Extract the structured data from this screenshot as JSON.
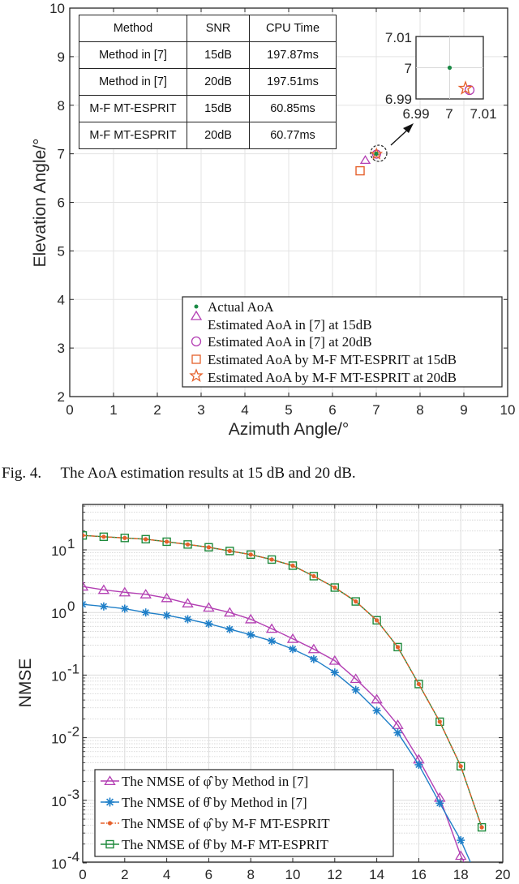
{
  "figure4": {
    "table": {
      "headers": [
        "Method",
        "SNR",
        "CPU Time"
      ],
      "rows": [
        [
          "Method in [7]",
          "15dB",
          "197.87ms"
        ],
        [
          "Method in [7]",
          "20dB",
          "197.51ms"
        ],
        [
          "M-F MT-ESPRIT",
          "15dB",
          "60.85ms"
        ],
        [
          "M-F MT-ESPRIT",
          "20dB",
          "60.77ms"
        ]
      ]
    },
    "caption": "Fig. 4.     The AoA estimation results at 15 dB and 20 dB.",
    "inset": {
      "xticks": [
        "6.99",
        "7",
        "7.01"
      ],
      "yticks": [
        "7.01",
        "7",
        "6.99"
      ]
    }
  },
  "chart_data": [
    {
      "type": "scatter",
      "title": "",
      "xlabel": "Azimuth Angle/°",
      "ylabel": "Elevation Angle/°",
      "xlim": [
        0,
        10
      ],
      "ylim": [
        2,
        10
      ],
      "xticks": [
        "0",
        "1",
        "2",
        "3",
        "4",
        "5",
        "6",
        "7",
        "8",
        "9",
        "10"
      ],
      "yticks": [
        "2",
        "3",
        "4",
        "5",
        "6",
        "7",
        "8",
        "9",
        "10"
      ],
      "grid": true,
      "legend_position": "lower right",
      "series": [
        {
          "name": "Actual AoA",
          "marker": "dot",
          "color": "#1a8a45",
          "x": [
            7.0
          ],
          "y": [
            7.0
          ]
        },
        {
          "name": "Estimated AoA in [7] at 15dB",
          "marker": "triangle",
          "color": "#b33fb3",
          "x": [
            6.75
          ],
          "y": [
            6.87
          ]
        },
        {
          "name": "Estimated AoA in [7] at 20dB",
          "marker": "circle",
          "color": "#b33fb3",
          "x": [
            7.006
          ],
          "y": [
            6.993
          ]
        },
        {
          "name": "Estimated AoA by M-F MT-ESPRIT at 15dB",
          "marker": "square",
          "color": "#e5602b",
          "x": [
            6.63
          ],
          "y": [
            6.65
          ]
        },
        {
          "name": "Estimated AoA by M-F MT-ESPRIT at 20dB",
          "marker": "star",
          "color": "#e5602b",
          "x": [
            7.005
          ],
          "y": [
            6.994
          ]
        }
      ],
      "inset": {
        "xlim": [
          6.99,
          7.01
        ],
        "ylim": [
          6.99,
          7.01
        ]
      }
    },
    {
      "type": "line",
      "title": "",
      "xlabel": "",
      "ylabel": "NMSE",
      "yscale": "log",
      "xlim": [
        0,
        20
      ],
      "ylim": [
        0.0001,
        50
      ],
      "xticks": [
        "0",
        "2",
        "4",
        "6",
        "8",
        "10",
        "12",
        "14",
        "16",
        "18",
        "20"
      ],
      "yticks": [
        "10^-4",
        "10^-3",
        "10^-2",
        "10^-1",
        "10^0",
        "10^1"
      ],
      "grid": true,
      "legend_position": "lower left",
      "x": [
        0,
        1,
        2,
        3,
        4,
        5,
        6,
        7,
        8,
        9,
        10,
        11,
        12,
        13,
        14,
        15,
        16,
        17,
        18,
        19
      ],
      "series": [
        {
          "name": "The NMSE of φ̂ by Method in [7]",
          "marker": "triangle",
          "color": "#b33fb3",
          "values": [
            2.6,
            2.3,
            2.1,
            1.95,
            1.7,
            1.4,
            1.2,
            1.0,
            0.78,
            0.55,
            0.38,
            0.26,
            0.17,
            0.087,
            0.041,
            0.016,
            0.0045,
            0.0011,
            0.00013,
            3e-05
          ]
        },
        {
          "name": "The NMSE of θ̂ by Method in [7]",
          "marker": "asterisk",
          "color": "#1f7fc8",
          "values": [
            1.35,
            1.25,
            1.15,
            1.0,
            0.9,
            0.78,
            0.66,
            0.54,
            0.44,
            0.35,
            0.26,
            0.18,
            0.11,
            0.058,
            0.027,
            0.012,
            0.0037,
            0.0009,
            0.00023,
            4e-05
          ]
        },
        {
          "name": "The NMSE of φ̂ by M-F MT-ESPRIT",
          "marker": "dot",
          "linestyle": "dash-dot",
          "color": "#e5602b",
          "values": [
            17,
            16.2,
            15.5,
            14.8,
            13.5,
            12.2,
            11.0,
            9.6,
            8.4,
            7.0,
            5.6,
            3.8,
            2.5,
            1.5,
            0.75,
            0.28,
            0.072,
            0.018,
            0.0035,
            0.00037
          ]
        },
        {
          "name": "The NMSE of θ̂ by M-F MT-ESPRIT",
          "marker": "square",
          "color": "#1e8a3c",
          "values": [
            17,
            16.2,
            15.5,
            14.8,
            13.5,
            12.2,
            11.0,
            9.6,
            8.4,
            7.0,
            5.6,
            3.8,
            2.5,
            1.5,
            0.75,
            0.28,
            0.072,
            0.018,
            0.0035,
            0.00037
          ]
        }
      ]
    }
  ]
}
